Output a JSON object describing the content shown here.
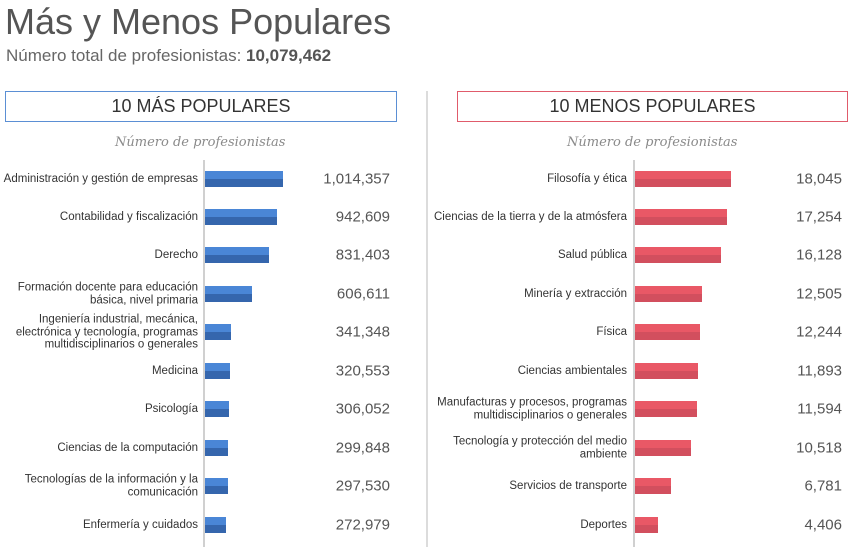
{
  "header": {
    "title": "Más y Menos Populares",
    "subtitle_label": "Número total de profesionistas: ",
    "subtitle_total": "10,079,462"
  },
  "colors": {
    "blue_top": "#4a86d6",
    "blue_bottom": "#3566ad",
    "red_top": "#e95866",
    "red_bottom": "#d24f5e",
    "blue_border": "#5b8fd4",
    "red_border": "#e05b6b"
  },
  "chart_data": [
    {
      "type": "bar",
      "orientation": "horizontal",
      "title": "10 MÁS POPULARES",
      "xlabel": "Número de profesionistas",
      "categories": [
        "Administración y gestión de empresas",
        "Contabilidad y fiscalización",
        "Derecho",
        "Formación docente para educación básica, nivel primaria",
        "Ingeniería industrial, mecánica, electrónica y tecnología, programas multidisciplinarios o generales",
        "Medicina",
        "Psicología",
        "Ciencias de la computación",
        "Tecnologías de la información y la comunicación",
        "Enfermería y cuidados"
      ],
      "values": [
        1014357,
        942609,
        831403,
        606611,
        341348,
        320553,
        306052,
        299848,
        297530,
        272979
      ],
      "labels": [
        "1,014,357",
        "942,609",
        "831,403",
        "606,611",
        "341,348",
        "320,553",
        "306,052",
        "299,848",
        "297,530",
        "272,979"
      ],
      "xlim": [
        0,
        1300000
      ],
      "grid": false
    },
    {
      "type": "bar",
      "orientation": "horizontal",
      "title": "10 MENOS POPULARES",
      "xlabel": "Número de profesionistas",
      "categories": [
        "Filosofía y ética",
        "Ciencias de la tierra y de la atmósfera",
        "Salud pública",
        "Minería y extracción",
        "Física",
        "Ciencias ambientales",
        "Manufacturas y procesos, programas multidisciplinarios o generales",
        "Tecnología y protección del medio ambiente",
        "Servicios de transporte",
        "Deportes"
      ],
      "values": [
        18045,
        17254,
        16128,
        12505,
        12244,
        11893,
        11594,
        10518,
        6781,
        4406
      ],
      "labels": [
        "18,045",
        "17,254",
        "16,128",
        "12,505",
        "12,244",
        "11,893",
        "11,594",
        "10,518",
        "6,781",
        "4,406"
      ],
      "xlim": [
        0,
        18045
      ],
      "grid": false
    }
  ]
}
